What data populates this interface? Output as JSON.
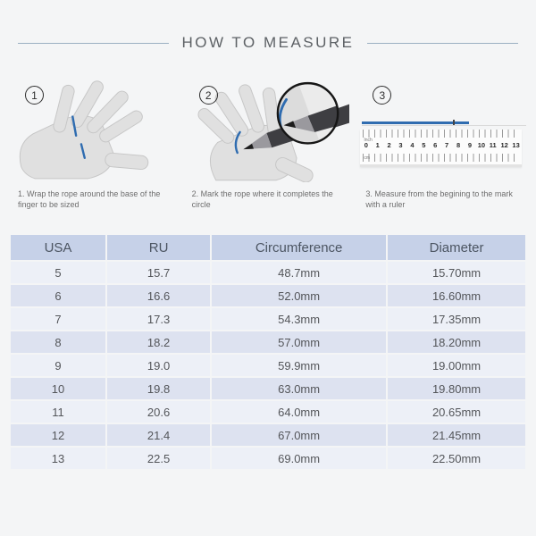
{
  "title": "HOW TO MEASURE",
  "colors": {
    "accent_blue": "#2f6cb0",
    "divider_line": "#9bafc2",
    "table_header_bg": "#c6d1e8",
    "table_row_odd_bg": "#edf0f7",
    "table_row_even_bg": "#dde2f0"
  },
  "steps": [
    {
      "number": "1",
      "icon": "hand-with-rope-illustration",
      "caption": "1. Wrap the rope around the base of the finger to be sized"
    },
    {
      "number": "2",
      "icon": "hand-with-pen-illustration",
      "caption": "2. Mark the rope where it completes the circle"
    },
    {
      "number": "3",
      "icon": "ruler-illustration",
      "caption": "3. Measure from the begining to the mark with a ruler",
      "ruler": {
        "unit_top": "Inch",
        "unit_bottom": "cm",
        "numbers": [
          "0",
          "1",
          "2",
          "3",
          "4",
          "5",
          "6",
          "7",
          "8",
          "9",
          "10",
          "11",
          "12",
          "13"
        ]
      }
    }
  ],
  "table": {
    "headers": [
      "USA",
      "RU",
      "Circumference",
      "Diameter"
    ],
    "rows": [
      [
        "5",
        "15.7",
        "48.7mm",
        "15.70mm"
      ],
      [
        "6",
        "16.6",
        "52.0mm",
        "16.60mm"
      ],
      [
        "7",
        "17.3",
        "54.3mm",
        "17.35mm"
      ],
      [
        "8",
        "18.2",
        "57.0mm",
        "18.20mm"
      ],
      [
        "9",
        "19.0",
        "59.9mm",
        "19.00mm"
      ],
      [
        "10",
        "19.8",
        "63.0mm",
        "19.80mm"
      ],
      [
        "11",
        "20.6",
        "64.0mm",
        "20.65mm"
      ],
      [
        "12",
        "21.4",
        "67.0mm",
        "21.45mm"
      ],
      [
        "13",
        "22.5",
        "69.0mm",
        "22.50mm"
      ]
    ]
  }
}
